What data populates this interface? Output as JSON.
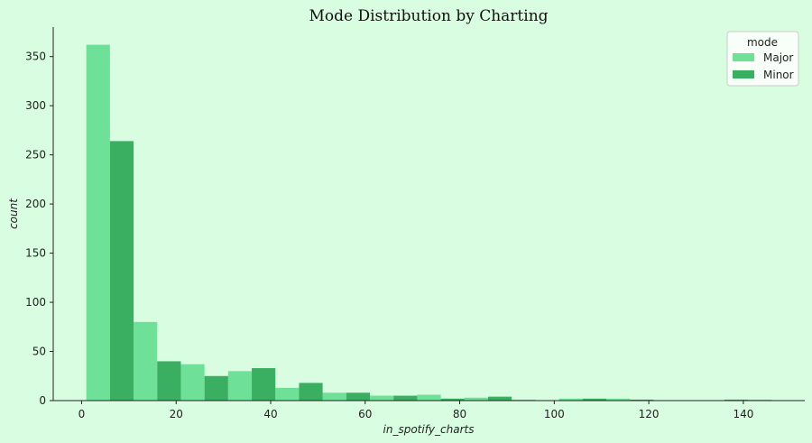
{
  "chart_data": {
    "type": "bar",
    "title": "Mode Distribution by Charting",
    "xlabel": "in_spotify_charts",
    "ylabel": "count",
    "xlim": [
      -6,
      153
    ],
    "ylim": [
      0,
      380
    ],
    "xticks": [
      0,
      20,
      40,
      60,
      80,
      100,
      120,
      140
    ],
    "yticks": [
      0,
      50,
      100,
      150,
      200,
      250,
      300,
      350
    ],
    "bin_width": 10,
    "bin_starts": [
      1,
      11,
      21,
      31,
      41,
      51,
      61,
      71,
      81,
      91,
      101,
      111,
      121,
      131,
      141
    ],
    "legend": {
      "title": "mode",
      "placement": "upper-right"
    },
    "grid": false,
    "series": [
      {
        "name": "Major",
        "color": "#6ee097",
        "values": [
          362,
          80,
          37,
          30,
          13,
          8,
          5,
          6,
          3,
          1,
          2,
          2,
          0,
          0,
          1
        ]
      },
      {
        "name": "Minor",
        "color": "#3aaf62",
        "values": [
          264,
          40,
          25,
          33,
          18,
          8,
          5,
          2,
          4,
          0,
          2,
          1,
          0,
          1,
          0
        ]
      }
    ]
  }
}
